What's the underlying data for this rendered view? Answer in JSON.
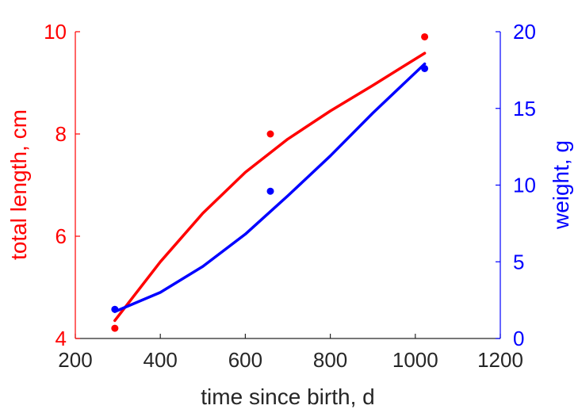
{
  "chart_data": {
    "type": "line",
    "xlabel": "time since birth, d",
    "xlim": [
      200,
      1200
    ],
    "xticks": [
      "200",
      "400",
      "600",
      "800",
      "1000",
      "1200"
    ],
    "left_axis": {
      "label": "total length, cm",
      "color": "#ff0000",
      "ylim": [
        4,
        10
      ],
      "ticks": [
        "4",
        "6",
        "8",
        "10"
      ]
    },
    "right_axis": {
      "label": "weight, g",
      "color": "#0000ff",
      "ylim": [
        0,
        20
      ],
      "ticks": [
        "0",
        "5",
        "10",
        "15",
        "20"
      ]
    },
    "series": [
      {
        "axis": "left",
        "color": "#ff0000",
        "points": [
          [
            293,
            4.2
          ],
          [
            659,
            8.0
          ],
          [
            1022,
            9.9
          ]
        ],
        "curve": [
          [
            293,
            4.35
          ],
          [
            400,
            5.5
          ],
          [
            500,
            6.45
          ],
          [
            600,
            7.25
          ],
          [
            700,
            7.9
          ],
          [
            800,
            8.45
          ],
          [
            900,
            8.95
          ],
          [
            1022,
            9.58
          ]
        ]
      },
      {
        "axis": "right",
        "color": "#0000ff",
        "points": [
          [
            293,
            1.9
          ],
          [
            659,
            9.6
          ],
          [
            1022,
            17.6
          ]
        ],
        "curve": [
          [
            293,
            1.75
          ],
          [
            400,
            3.0
          ],
          [
            500,
            4.7
          ],
          [
            600,
            6.8
          ],
          [
            700,
            9.3
          ],
          [
            800,
            11.9
          ],
          [
            900,
            14.7
          ],
          [
            1022,
            17.9
          ]
        ]
      }
    ]
  }
}
